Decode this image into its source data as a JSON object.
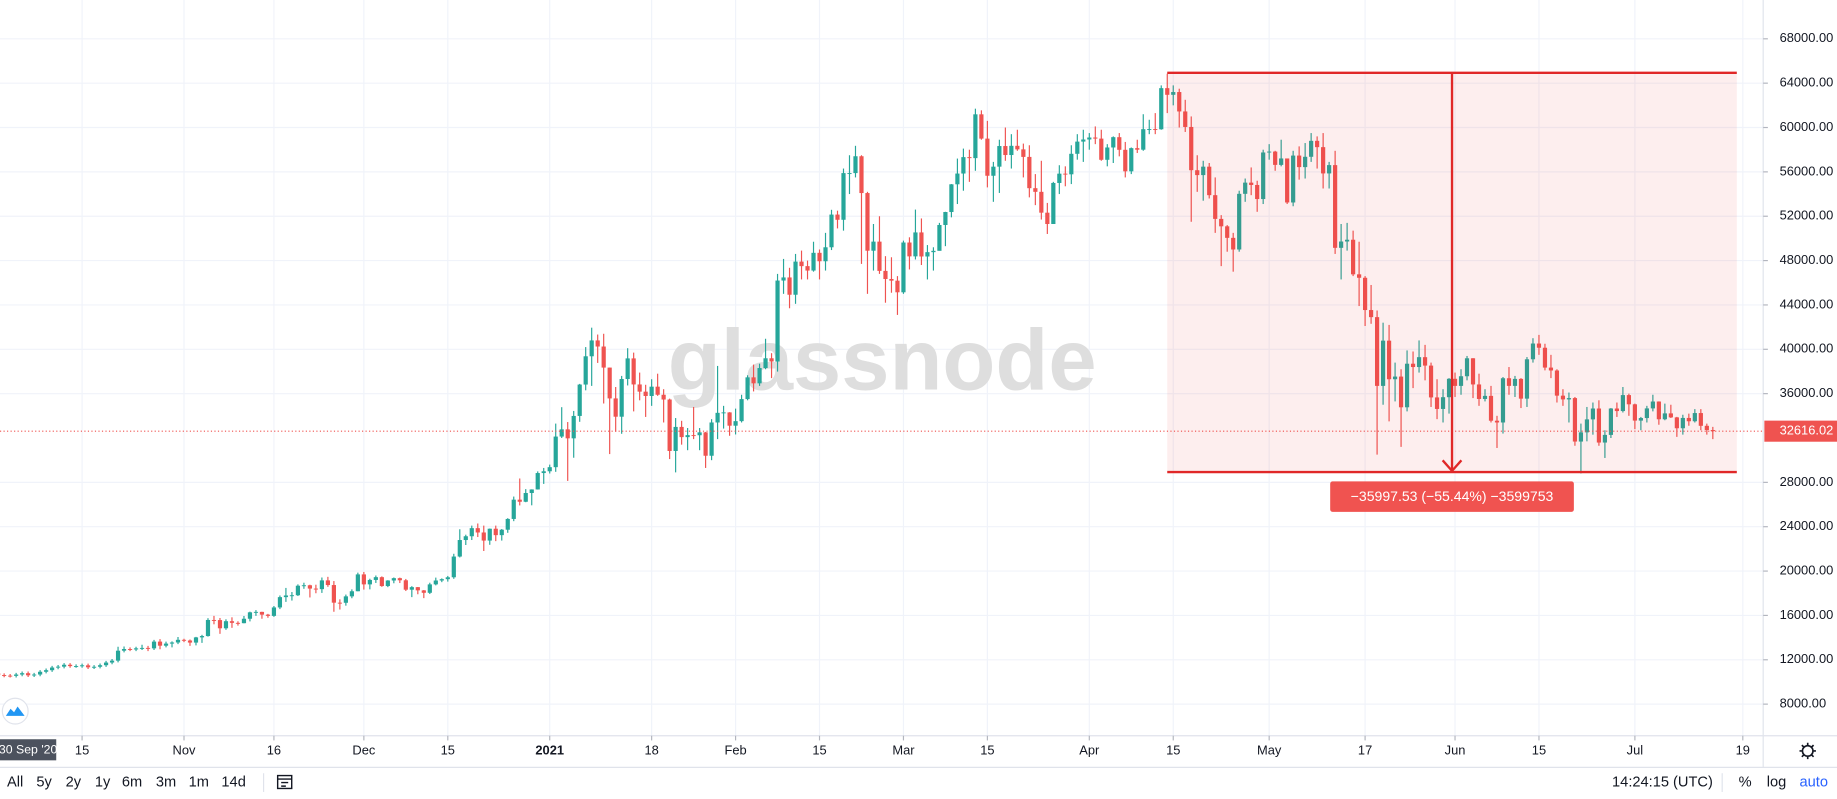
{
  "chart_data": {
    "type": "candlestick",
    "watermark": "glassnode",
    "cursor_label": "30 Sep '20",
    "up_color": "#26a69a",
    "down_color": "#ef5350",
    "open": [
      10780,
      10620,
      10570,
      10550,
      10670,
      10790,
      10600,
      10670,
      10920,
      11060,
      11300,
      11380,
      11550,
      11430,
      11430,
      11500,
      11320,
      11370,
      11510,
      11750,
      11920,
      12820,
      12970,
      12930,
      13030,
      13070,
      13030,
      13640,
      13270,
      13460,
      13560,
      13800,
      13740,
      13550,
      14020,
      14140,
      15590,
      15580,
      14840,
      15480,
      15330,
      15300,
      15700,
      16280,
      16320,
      16070,
      15960,
      16720,
      17650,
      17800,
      17820,
      18680,
      18720,
      18420,
      18370,
      19160,
      18740,
      17150,
      17140,
      17720,
      18180,
      19700,
      18800,
      19200,
      19450,
      18650,
      19150,
      19360,
      19170,
      18320,
      18550,
      18260,
      18040,
      18800,
      19150,
      19270,
      19440,
      21310,
      22800,
      23140,
      23870,
      23480,
      22750,
      23820,
      23240,
      23730,
      24700,
      26440,
      26250,
      27040,
      27360,
      28840,
      29000,
      29370,
      32130,
      32780,
      31970,
      33990,
      36820,
      39370,
      40800,
      40250,
      38350,
      35570,
      33920,
      37320,
      39180,
      36830,
      36180,
      35790,
      36630,
      35900,
      35470,
      30830,
      33000,
      32080,
      32260,
      32250,
      32510,
      30400,
      33400,
      34270,
      34310,
      33110,
      33520,
      35510,
      37470,
      36930,
      38310,
      39190,
      38900,
      46200,
      46480,
      44920,
      47910,
      47500,
      47100,
      48700,
      47940,
      49200,
      52150,
      51680,
      55890,
      55890,
      57410,
      54090,
      48890,
      49710,
      47070,
      46340,
      46190,
      45140,
      49630,
      48380,
      50540,
      48370,
      48760,
      48880,
      51210,
      52380,
      54880,
      55850,
      57330,
      57240,
      61190,
      59000,
      55650,
      56470,
      58330,
      57520,
      58350,
      58030,
      57350,
      54530,
      54200,
      52320,
      51300,
      55000,
      55840,
      55780,
      57630,
      58730,
      58920,
      59100,
      59000,
      57090,
      58200,
      59130,
      57990,
      56050,
      58140,
      58000,
      59850,
      59860,
      59840,
      63550,
      62950,
      63200,
      61450,
      60050,
      56150,
      55710,
      56470,
      53900,
      51760,
      51090,
      50050,
      49000,
      54020,
      55030,
      54820,
      53550,
      57750,
      57830,
      56630,
      57210,
      53240,
      57470,
      56430,
      57360,
      58800,
      58230,
      55860,
      56610,
      49150,
      49720,
      49880,
      46760,
      46450,
      43540,
      42900,
      36700,
      40780,
      37300,
      37540,
      34770,
      38700,
      38400,
      39290,
      38530,
      35660,
      34620,
      35680,
      37340,
      36700,
      37570,
      39190,
      36830,
      35520,
      35800,
      33560,
      33400,
      37390,
      36700,
      37330,
      35550,
      39100,
      40520,
      40140,
      38350,
      38090,
      35820,
      35480,
      35600,
      31680,
      32510,
      33680,
      34660,
      31590,
      32280,
      34660,
      34430,
      35870,
      35040,
      33570,
      33800,
      34670,
      35290,
      33690,
      34220,
      33860,
      32880,
      33810,
      33510,
      34250,
      33100,
      32720
    ],
    "high": [
      10930,
      10770,
      10720,
      10820,
      10940,
      10940,
      10820,
      11070,
      11210,
      11450,
      11530,
      11700,
      11700,
      11580,
      11650,
      11650,
      11520,
      11660,
      11900,
      12070,
      13170,
      13200,
      13120,
      13180,
      13350,
      13250,
      13790,
      13860,
      13640,
      13660,
      14050,
      13900,
      13830,
      14070,
      14250,
      15750,
      15960,
      15770,
      15650,
      15830,
      15470,
      15950,
      16340,
      16480,
      16330,
      16140,
      16850,
      17800,
      18480,
      18110,
      18800,
      18950,
      18770,
      18770,
      19420,
      19480,
      19100,
      17450,
      17880,
      18350,
      19860,
      19920,
      19310,
      19600,
      19520,
      19180,
      19420,
      19410,
      19290,
      18640,
      18560,
      18290,
      18950,
      19410,
      19340,
      19560,
      21560,
      23770,
      23280,
      24100,
      24290,
      24100,
      23840,
      24100,
      23790,
      24770,
      26720,
      28350,
      27390,
      27370,
      28990,
      29300,
      29600,
      33300,
      34780,
      33440,
      34440,
      36880,
      40200,
      41950,
      41330,
      41400,
      38350,
      36600,
      37600,
      40100,
      39700,
      37900,
      36800,
      37300,
      37800,
      36400,
      35550,
      33800,
      33550,
      32900,
      34800,
      32900,
      32550,
      33700,
      38500,
      34900,
      34330,
      34650,
      35900,
      37660,
      38620,
      38700,
      40950,
      39650,
      46800,
      48150,
      47350,
      48600,
      48900,
      48000,
      49700,
      49000,
      50500,
      52580,
      52500,
      56300,
      57500,
      58350,
      57500,
      54200,
      51300,
      52000,
      48400,
      48300,
      46600,
      49800,
      50100,
      52600,
      51800,
      49400,
      49200,
      51400,
      52400,
      54900,
      57200,
      58100,
      58000,
      61700,
      61550,
      60600,
      56900,
      58900,
      60000,
      59400,
      59800,
      58550,
      58400,
      55800,
      57000,
      53200,
      55100,
      56600,
      56500,
      58400,
      59400,
      59800,
      59500,
      60100,
      59800,
      58500,
      59200,
      59500,
      58700,
      58200,
      58900,
      61200,
      60700,
      61300,
      63800,
      64850,
      63800,
      63500,
      62500,
      61000,
      57500,
      57000,
      56800,
      55500,
      52100,
      51200,
      50500,
      54300,
      55400,
      56400,
      55200,
      58000,
      58500,
      57900,
      58900,
      57200,
      57900,
      58300,
      58600,
      59500,
      59200,
      59500,
      56900,
      57900,
      51300,
      51400,
      50700,
      49700,
      46600,
      45800,
      43500,
      42400,
      42200,
      38800,
      38200,
      39900,
      39800,
      40800,
      40400,
      38800,
      37300,
      36400,
      37400,
      37900,
      38200,
      39400,
      39200,
      37800,
      36400,
      36700,
      34000,
      37500,
      38400,
      37600,
      37400,
      39300,
      41000,
      41300,
      40500,
      39500,
      38200,
      36400,
      36100,
      35700,
      33300,
      34800,
      35200,
      35400,
      32700,
      34700,
      35200,
      36600,
      36000,
      35100,
      33900,
      34900,
      35900,
      35300,
      35100,
      35000,
      33900,
      34100,
      34200,
      34600,
      34600,
      33300,
      33000
    ],
    "low": [
      10470,
      10420,
      10400,
      10400,
      10520,
      10450,
      10450,
      10520,
      10770,
      10910,
      11150,
      11230,
      11280,
      11280,
      11280,
      11170,
      11170,
      11220,
      11360,
      11600,
      11770,
      12670,
      12780,
      12780,
      12880,
      12780,
      12880,
      12950,
      13120,
      13120,
      13410,
      13590,
      13250,
      13300,
      13520,
      14090,
      15200,
      14340,
      14700,
      14880,
      15080,
      15290,
      15460,
      15960,
      15700,
      15790,
      15870,
      16570,
      17220,
      17340,
      17750,
      18400,
      17620,
      18000,
      18030,
      18580,
      16330,
      16530,
      16880,
      17550,
      18180,
      18330,
      18350,
      18930,
      18580,
      18550,
      18900,
      18920,
      18200,
      17650,
      17910,
      17560,
      17930,
      18710,
      19000,
      19050,
      19300,
      21230,
      22350,
      22800,
      23070,
      21810,
      22370,
      22700,
      22750,
      23450,
      24500,
      25920,
      26210,
      25930,
      27350,
      27860,
      28800,
      28950,
      32000,
      28130,
      30220,
      33460,
      36300,
      36700,
      38770,
      35110,
      30550,
      32570,
      32380,
      36740,
      34400,
      35400,
      33900,
      34900,
      35800,
      33400,
      30100,
      28900,
      31400,
      30900,
      31900,
      30900,
      29300,
      30000,
      31900,
      32850,
      32200,
      32320,
      33400,
      35400,
      36200,
      36700,
      38200,
      37400,
      37990,
      45000,
      43700,
      44100,
      46300,
      46300,
      47000,
      46300,
      47100,
      48950,
      50900,
      50700,
      54000,
      55500,
      47700,
      45000,
      47100,
      46800,
      44200,
      45100,
      43100,
      45000,
      47200,
      48100,
      47600,
      46300,
      47100,
      48900,
      49300,
      51900,
      53100,
      54300,
      55100,
      56100,
      58900,
      54600,
      53300,
      54100,
      57000,
      56300,
      57900,
      55500,
      53700,
      53000,
      51700,
      50400,
      51300,
      54000,
      54700,
      54900,
      57100,
      56900,
      58000,
      58500,
      57000,
      56500,
      56800,
      57400,
      55500,
      55800,
      57700,
      57900,
      59400,
      59400,
      59800,
      61300,
      62000,
      60000,
      59600,
      51500,
      54200,
      53400,
      53600,
      50500,
      47500,
      48800,
      47000,
      48800,
      53300,
      53900,
      52400,
      53100,
      57100,
      56100,
      56500,
      53100,
      52900,
      55300,
      55400,
      56900,
      56300,
      54500,
      54500,
      48600,
      46300,
      48900,
      46600,
      43900,
      42100,
      42300,
      30500,
      35000,
      33500,
      35300,
      31200,
      34400,
      36500,
      37900,
      37200,
      34800,
      33700,
      33400,
      34200,
      35700,
      35900,
      37200,
      35600,
      34900,
      35300,
      33400,
      31100,
      32400,
      35900,
      35700,
      34700,
      34800,
      38800,
      39500,
      38100,
      37400,
      35200,
      34900,
      33400,
      31300,
      28800,
      31700,
      32300,
      31300,
      30200,
      32000,
      33900,
      34300,
      34000,
      32800,
      32700,
      33400,
      34400,
      33200,
      33600,
      33800,
      32100,
      32300,
      33100,
      33400,
      32700,
      32300,
      31900
    ],
    "close": [
      10620,
      10570,
      10550,
      10670,
      10790,
      10600,
      10670,
      10920,
      11060,
      11300,
      11380,
      11550,
      11430,
      11430,
      11500,
      11320,
      11370,
      11510,
      11750,
      11920,
      12820,
      12970,
      12930,
      13030,
      13070,
      13030,
      13640,
      13270,
      13460,
      13560,
      13800,
      13740,
      13550,
      14020,
      14140,
      15590,
      15580,
      14840,
      15480,
      15330,
      15300,
      15700,
      16280,
      16320,
      16070,
      15960,
      16720,
      17650,
      17800,
      17820,
      18680,
      18720,
      18420,
      18370,
      19160,
      18740,
      17150,
      17140,
      17720,
      18180,
      19700,
      18800,
      19200,
      19450,
      18650,
      19150,
      19360,
      19170,
      18320,
      18550,
      18260,
      18040,
      18800,
      19150,
      19270,
      19440,
      21310,
      22800,
      23140,
      23870,
      23480,
      22750,
      23820,
      23240,
      23730,
      24700,
      26440,
      26250,
      27040,
      27360,
      28840,
      29000,
      29370,
      32130,
      32780,
      31970,
      33990,
      36820,
      39370,
      40800,
      40250,
      38350,
      35570,
      33920,
      37320,
      39180,
      36830,
      36180,
      35790,
      36630,
      35900,
      35470,
      30830,
      33000,
      32080,
      32260,
      32250,
      32510,
      30400,
      33400,
      34270,
      34310,
      33110,
      33520,
      35510,
      37470,
      36930,
      38310,
      39190,
      38900,
      46200,
      46480,
      44920,
      47910,
      47500,
      47100,
      48700,
      47940,
      49200,
      52150,
      51680,
      55890,
      55890,
      57410,
      54090,
      48890,
      49710,
      47070,
      46340,
      46190,
      45140,
      49630,
      48380,
      50540,
      48370,
      48760,
      48880,
      51210,
      52380,
      54880,
      55850,
      57330,
      57240,
      61190,
      59000,
      55650,
      56470,
      58330,
      57520,
      58350,
      58030,
      57350,
      54530,
      54200,
      52320,
      51300,
      55000,
      55840,
      55780,
      57630,
      58730,
      58920,
      59100,
      59000,
      57090,
      58200,
      59130,
      57990,
      56050,
      58140,
      58000,
      59850,
      59860,
      59840,
      63550,
      62950,
      63200,
      61450,
      60050,
      56150,
      55710,
      56470,
      53900,
      51760,
      51090,
      50050,
      49000,
      54020,
      55030,
      54820,
      53550,
      57750,
      57830,
      56630,
      57210,
      53240,
      57470,
      56430,
      57360,
      58800,
      58230,
      55860,
      56610,
      49150,
      49720,
      49880,
      46760,
      46450,
      43540,
      42900,
      36700,
      40780,
      37300,
      37540,
      34770,
      38700,
      38400,
      39290,
      38530,
      35660,
      34620,
      35680,
      37340,
      36700,
      37570,
      39190,
      36830,
      35520,
      35800,
      33560,
      33400,
      37390,
      36700,
      37330,
      35550,
      39100,
      40520,
      40140,
      38350,
      38090,
      35820,
      35480,
      35600,
      31680,
      32510,
      33680,
      34660,
      31590,
      32280,
      34660,
      34430,
      35870,
      35040,
      33570,
      33800,
      34670,
      35290,
      33690,
      34220,
      33860,
      32880,
      33810,
      33510,
      34250,
      33100,
      32720,
      32616.02
    ],
    "xlim": [
      0.31,
      294.4
    ],
    "xticks": [
      {
        "value": 14,
        "label": "15"
      },
      {
        "value": 31,
        "label": "Nov"
      },
      {
        "value": 46,
        "label": "16"
      },
      {
        "value": 61,
        "label": "Dec"
      },
      {
        "value": 75,
        "label": "15"
      },
      {
        "value": 92,
        "label": "2021"
      },
      {
        "value": 109,
        "label": "18"
      },
      {
        "value": 123,
        "label": "Feb"
      },
      {
        "value": 137,
        "label": "15"
      },
      {
        "value": 151,
        "label": "Mar"
      },
      {
        "value": 165,
        "label": "15"
      },
      {
        "value": 182,
        "label": "Apr"
      },
      {
        "value": 196,
        "label": "15"
      },
      {
        "value": 212,
        "label": "May"
      },
      {
        "value": 228,
        "label": "17"
      },
      {
        "value": 243,
        "label": "Jun"
      },
      {
        "value": 257,
        "label": "15"
      },
      {
        "value": 273,
        "label": "Jul"
      },
      {
        "value": 291,
        "label": "19"
      }
    ],
    "ylim": [
      5150,
      71500
    ],
    "yticks": [
      {
        "value": 8000,
        "label": "8000.00"
      },
      {
        "value": 12000,
        "label": "12000.00"
      },
      {
        "value": 16000,
        "label": "16000.00"
      },
      {
        "value": 20000,
        "label": "20000.00"
      },
      {
        "value": 24000,
        "label": "24000.00"
      },
      {
        "value": 28000,
        "label": "28000.00"
      },
      {
        "value": 36000,
        "label": "36000.00"
      },
      {
        "value": 40000,
        "label": "40000.00"
      },
      {
        "value": 44000,
        "label": "44000.00"
      },
      {
        "value": 48000,
        "label": "48000.00"
      },
      {
        "value": 52000,
        "label": "52000.00"
      },
      {
        "value": 56000,
        "label": "56000.00"
      },
      {
        "value": 60000,
        "label": "60000.00"
      },
      {
        "value": 64000,
        "label": "64000.00"
      },
      {
        "value": 68000,
        "label": "68000.00"
      }
    ],
    "grid": true,
    "last_price": 32616.02,
    "measure": {
      "from": 64930,
      "to": 28932.47,
      "x_range": [
        195,
        290
      ],
      "label": "−35997.53 (−55.44%) −3599753",
      "color": "#e02828"
    }
  },
  "toolbar": {
    "ranges": [
      "All",
      "5y",
      "2y",
      "1y",
      "6m",
      "3m",
      "1m",
      "14d"
    ],
    "time": "14:24:15 (UTC)",
    "percent": "%",
    "log": "log",
    "auto": "auto"
  }
}
